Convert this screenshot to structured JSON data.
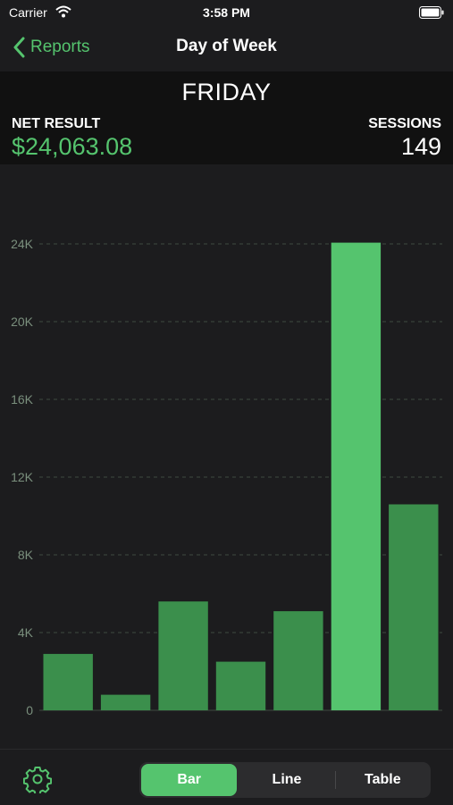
{
  "status_bar": {
    "carrier": "Carrier",
    "time": "3:58 PM"
  },
  "nav": {
    "back_label": "Reports",
    "title": "Day of Week"
  },
  "summary": {
    "day": "FRIDAY",
    "net_label": "NET RESULT",
    "net_value": "$24,063.08",
    "sessions_label": "SESSIONS",
    "sessions_value": "149"
  },
  "chart_data": {
    "type": "bar",
    "categories": [
      "",
      "",
      "",
      "",
      "",
      "",
      ""
    ],
    "values": [
      2900,
      800,
      5600,
      2500,
      5100,
      24063.08,
      10600
    ],
    "selected_index": 5,
    "title": "",
    "xlabel": "",
    "ylabel": "",
    "ylim": [
      0,
      24000
    ],
    "y_ticks": [
      0,
      4000,
      8000,
      12000,
      16000,
      20000,
      24000
    ],
    "y_tick_labels": [
      "0",
      "4K",
      "8K",
      "12K",
      "16K",
      "20K",
      "24K"
    ],
    "grid": true,
    "colors": {
      "bar": "#3b8f4c",
      "selected": "#55c46e",
      "grid": "#3e4a40"
    }
  },
  "toolbar": {
    "segments": [
      "Bar",
      "Line",
      "Table"
    ],
    "active_segment": "Bar"
  },
  "colors": {
    "accent": "#55c46e",
    "background": "#1c1c1e",
    "header": "#111111"
  }
}
